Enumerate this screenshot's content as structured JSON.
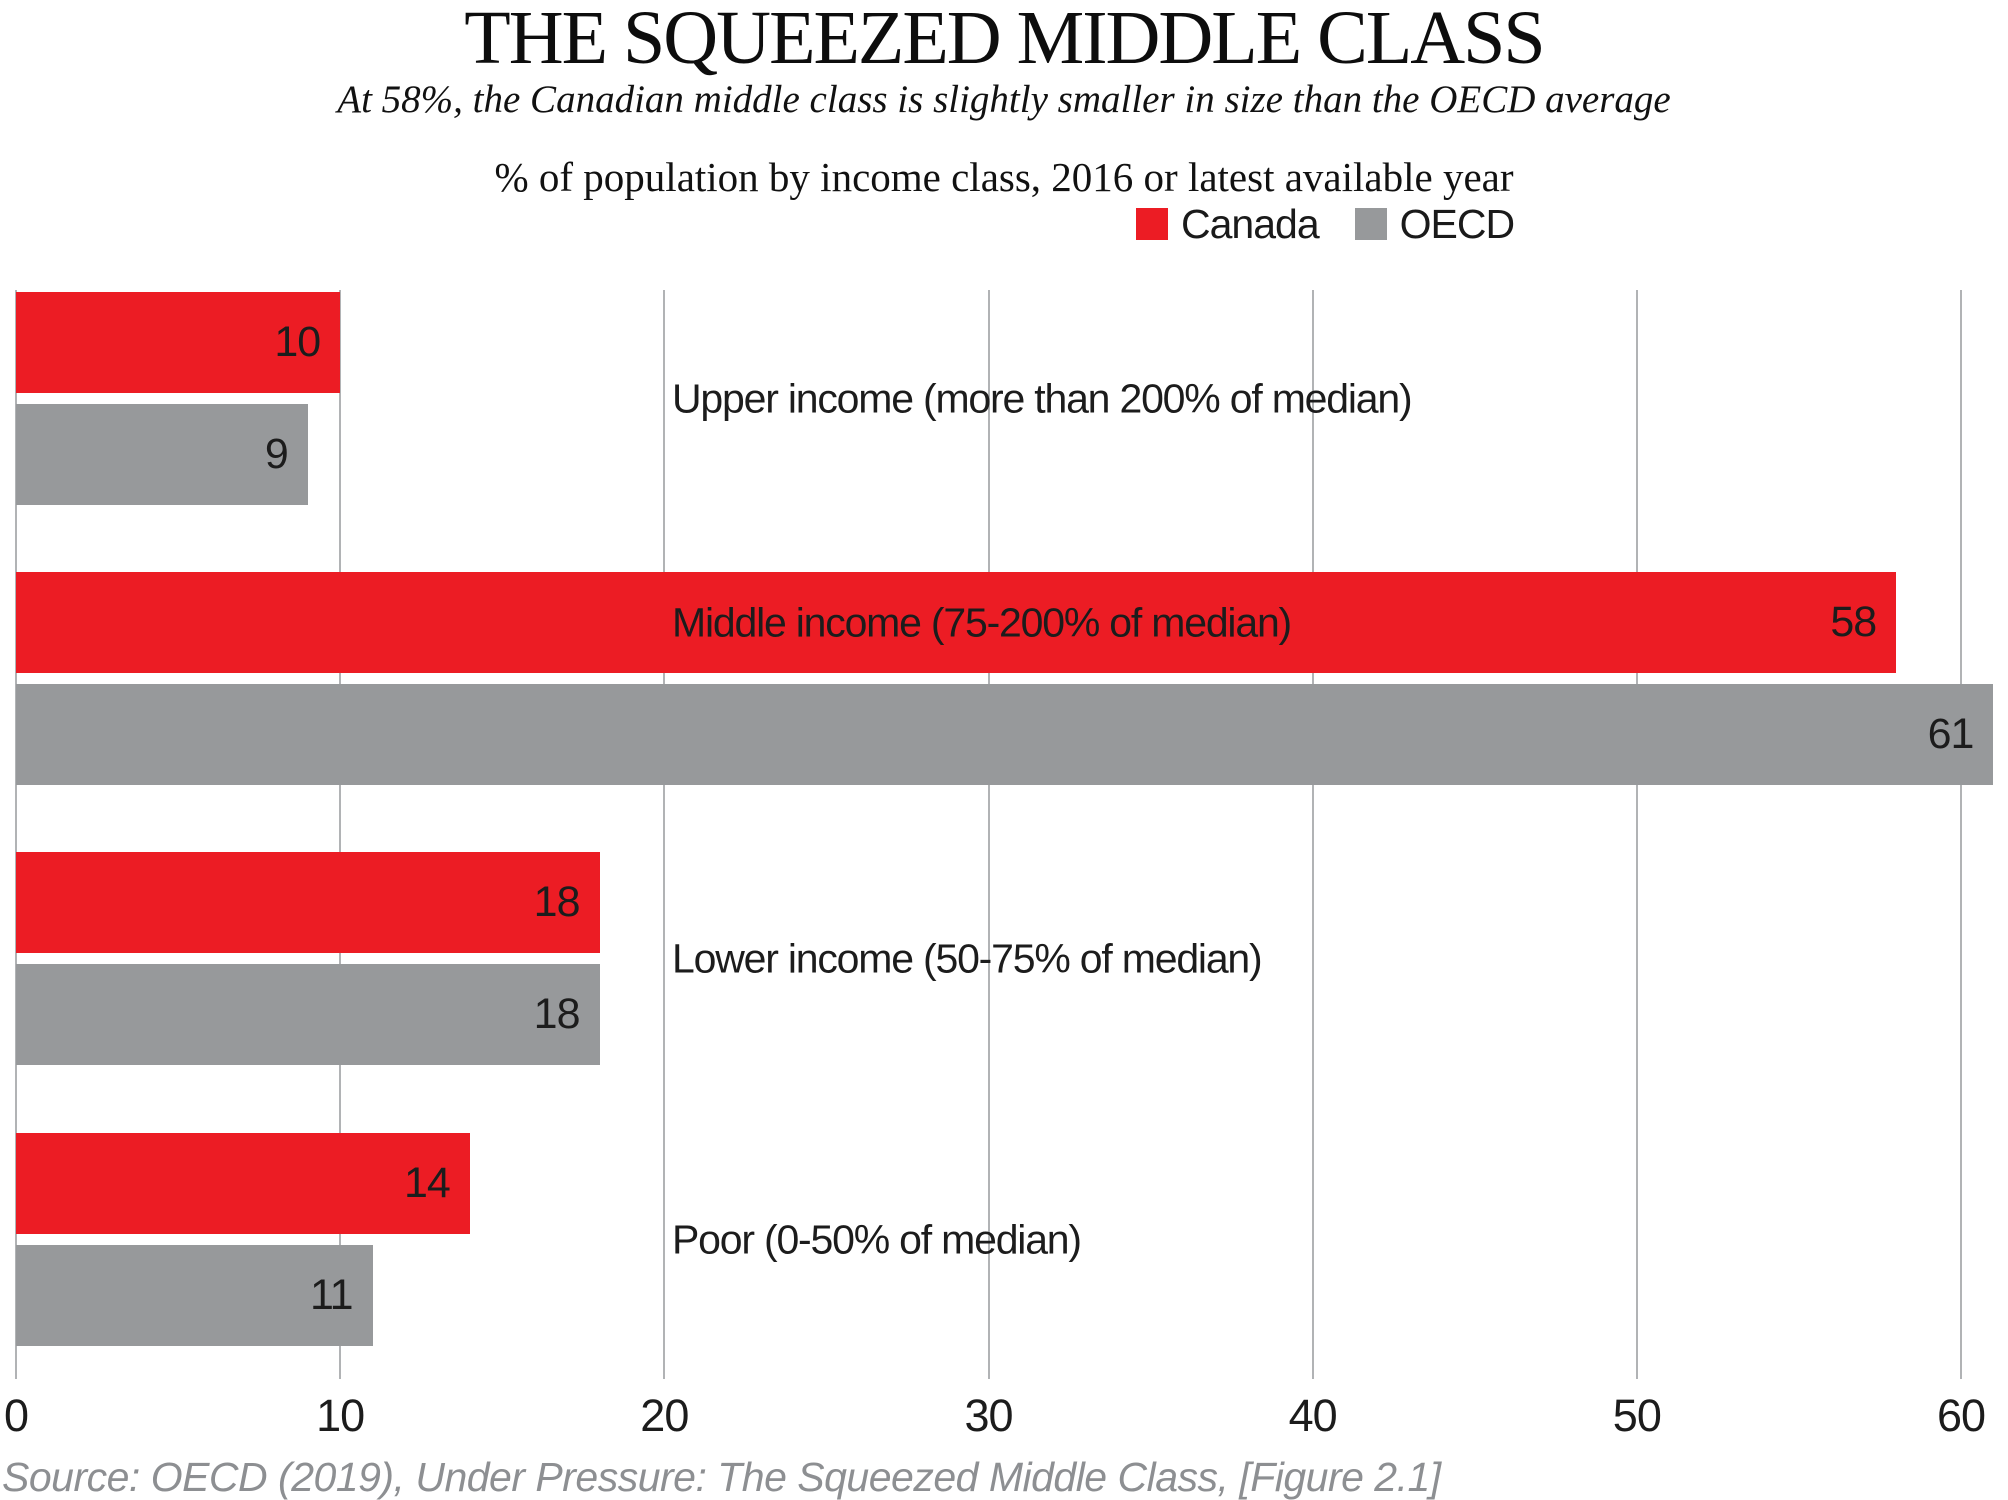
{
  "header": {
    "title": "THE SQUEEZED MIDDLE CLASS",
    "subtitle": "At 58%, the Canadian middle class is slightly smaller in size than the OECD average",
    "measure": "% of population by income class, 2016 or latest available year"
  },
  "legend": {
    "items": [
      {
        "label": "Canada",
        "color": "#ec1c24"
      },
      {
        "label": "OECD",
        "color": "#97999b"
      }
    ]
  },
  "chart_data": {
    "type": "bar",
    "orientation": "horizontal",
    "title": "THE SQUEEZED MIDDLE CLASS",
    "subtitle": "At 58%, the Canadian middle class is slightly smaller in size than the OECD average",
    "unit_label": "% of population by income class, 2016 or latest available year",
    "categories": [
      "Upper income (more than 200% of median)",
      "Middle income (75-200% of median)",
      "Lower income (50-75% of median)",
      "Poor (0-50% of median)"
    ],
    "series": [
      {
        "name": "Canada",
        "color": "#ec1c24",
        "values": [
          10,
          58,
          18,
          14
        ]
      },
      {
        "name": "OECD",
        "color": "#97999b",
        "values": [
          9,
          61,
          18,
          11
        ]
      }
    ],
    "value_labels_shown": true,
    "xlim": [
      0,
      60
    ],
    "ticks": [
      0,
      10,
      20,
      30,
      40,
      50,
      60
    ],
    "grid": "vertical",
    "legend_position": "top-right"
  },
  "source": "Source: OECD (2019), Under Pressure: The Squeezed Middle Class, [Figure 2.1]",
  "colors": {
    "canada": "#ec1c24",
    "oecd": "#97999b",
    "gridline": "#b1b3b5",
    "source_text": "#8d8f92",
    "text": "#1c1c1c"
  }
}
